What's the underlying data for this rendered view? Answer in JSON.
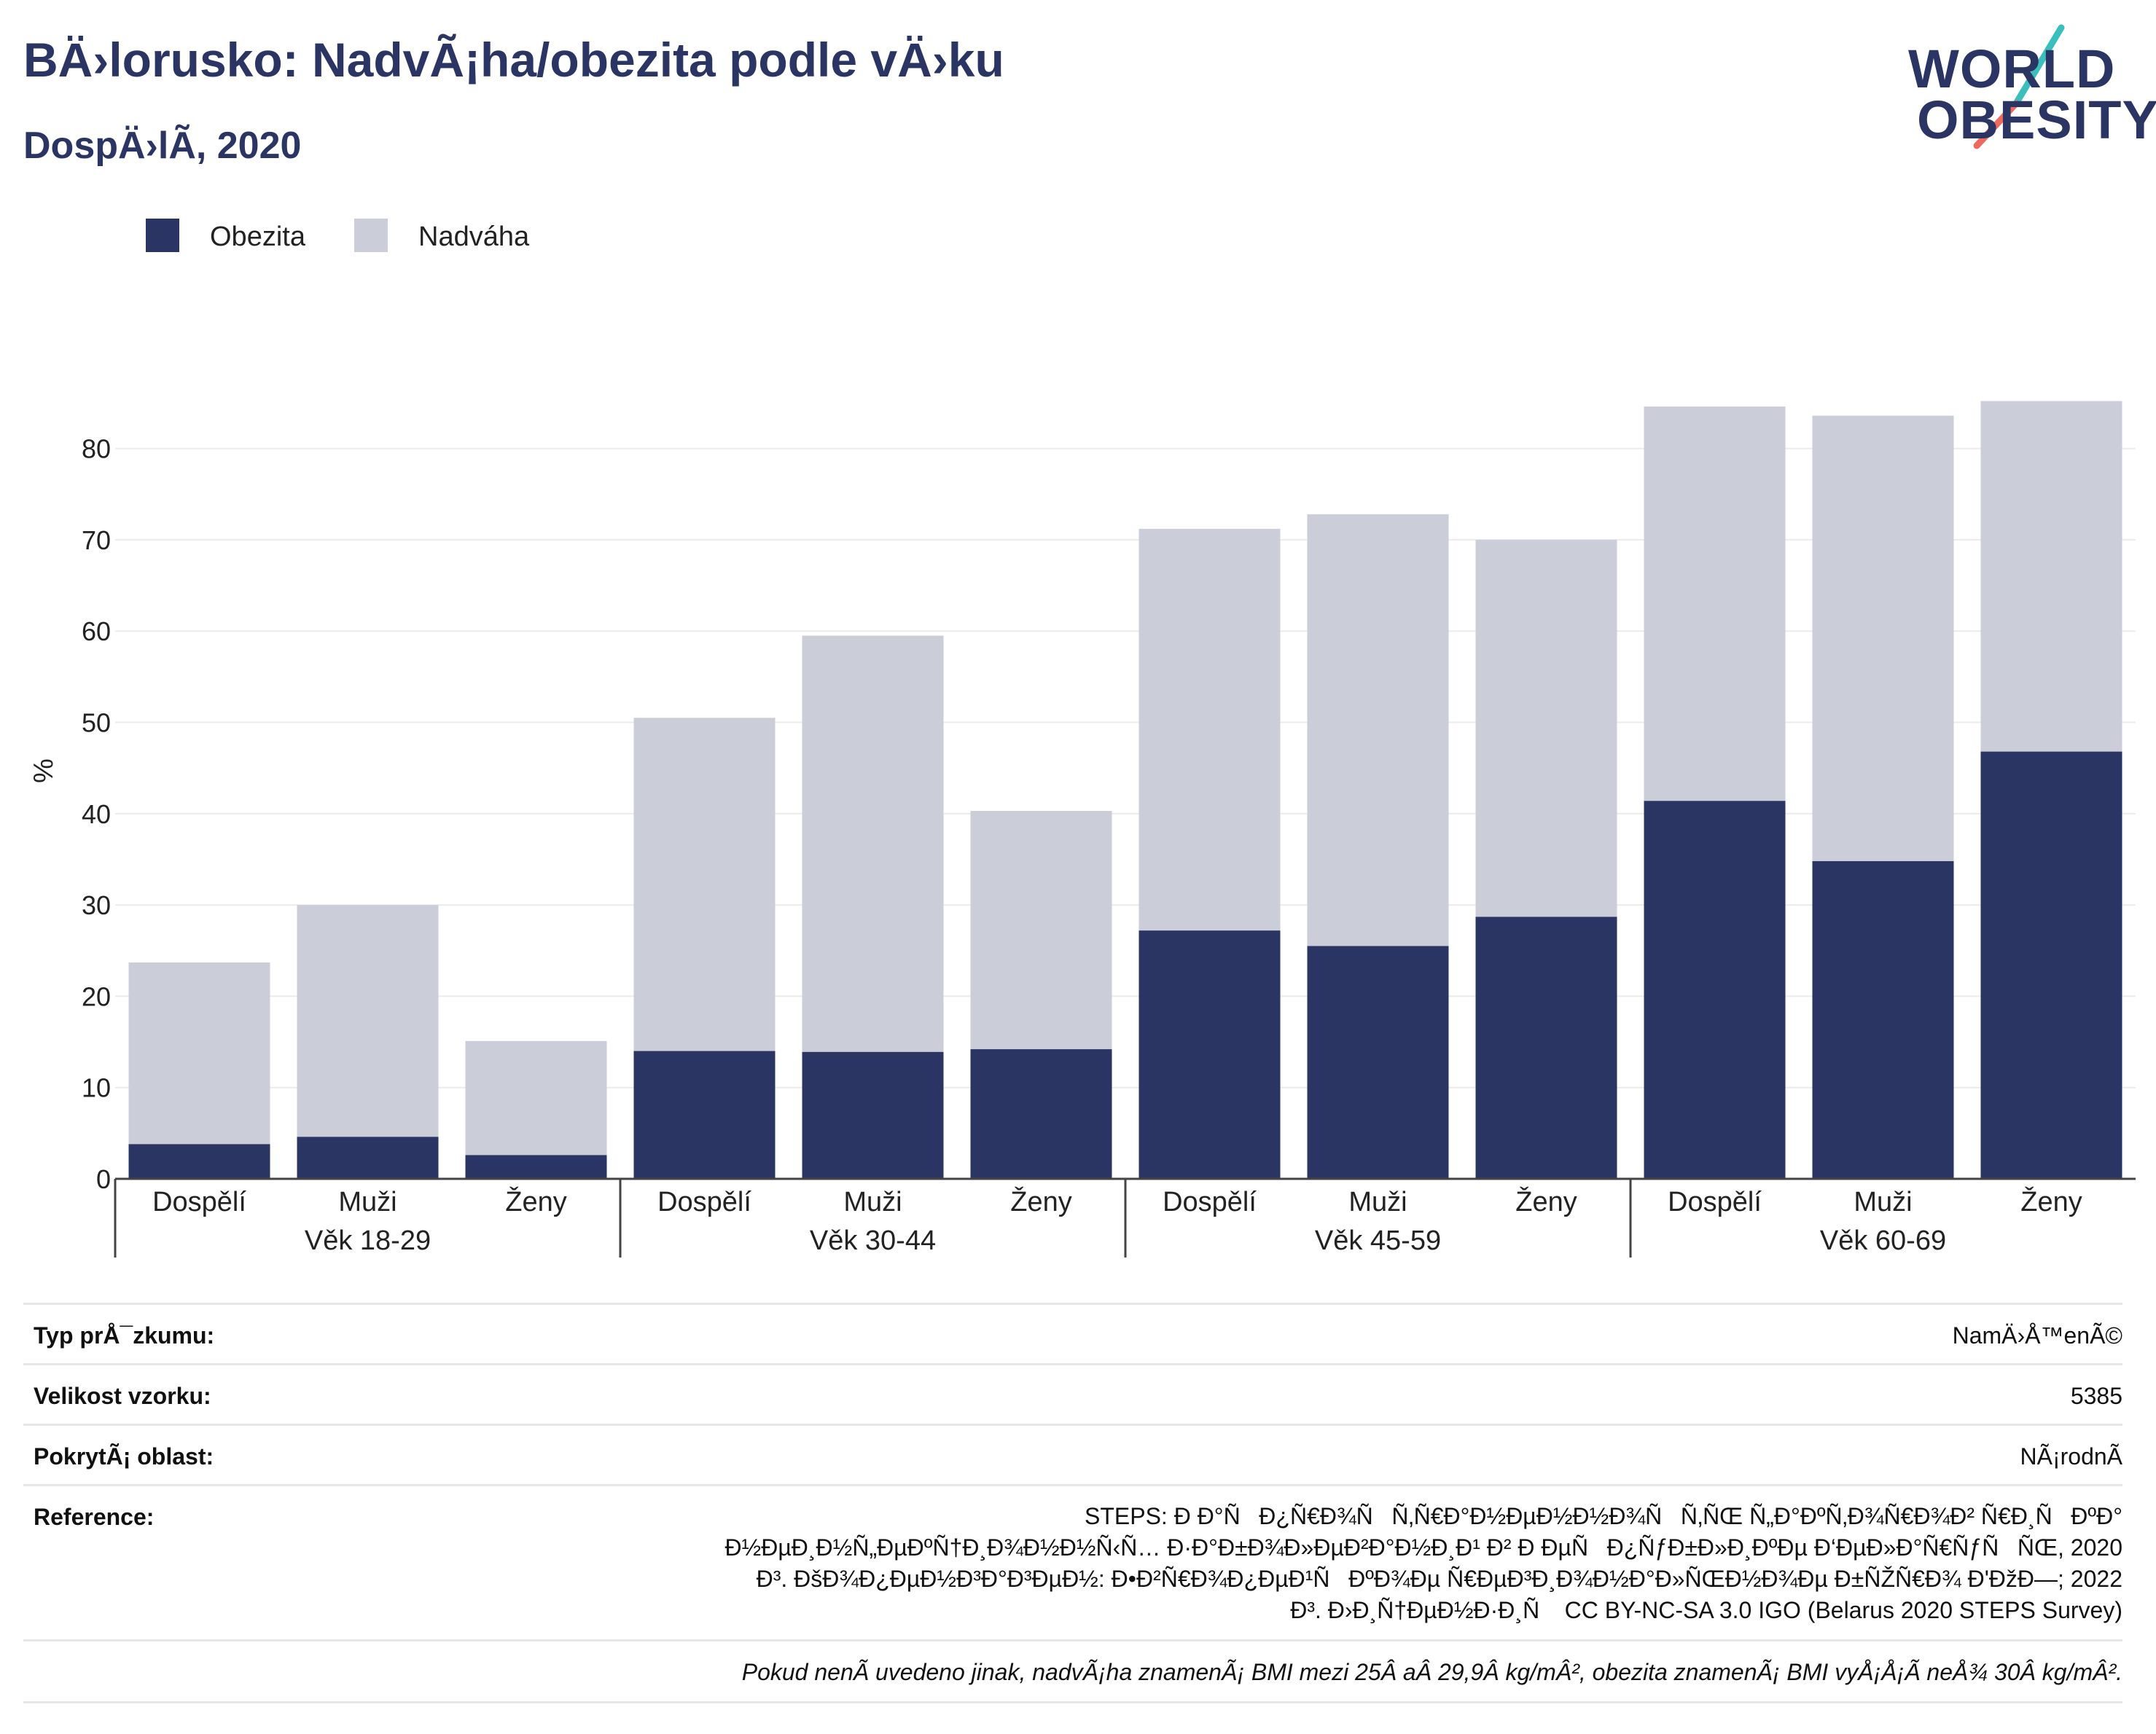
{
  "header": {
    "title": "BÄ›lorusko: NadvÃ¡ha/obezita podle vÄ›ku",
    "subtitle": "DospÄ›lÃ, 2020"
  },
  "logo": {
    "line1": "WORLD",
    "line2": "OBESITY"
  },
  "colors": {
    "obesity": "#2a3563",
    "overweight": "#cbcdd9",
    "title": "#2a3563",
    "logo_slash_teal": "#3bbfbd",
    "logo_slash_coral": "#ee6a5e"
  },
  "legend": [
    {
      "label": "Obezita",
      "color": "#2a3563"
    },
    {
      "label": "Nadváha",
      "color": "#cbcdd9"
    }
  ],
  "chart_data": {
    "type": "bar",
    "stacked": true,
    "ylabel": "%",
    "ylim": [
      0,
      85
    ],
    "yticks": [
      0,
      10,
      20,
      30,
      40,
      50,
      60,
      70,
      80
    ],
    "grid": true,
    "legend_position": "top-left",
    "groups": [
      {
        "label": "Věk 18-29",
        "categories": [
          "Dospělí",
          "Muži",
          "Ženy"
        ]
      },
      {
        "label": "Věk 30-44",
        "categories": [
          "Dospělí",
          "Muži",
          "Ženy"
        ]
      },
      {
        "label": "Věk 45-59",
        "categories": [
          "Dospělí",
          "Muži",
          "Ženy"
        ]
      },
      {
        "label": "Věk 60-69",
        "categories": [
          "Dospělí",
          "Muži",
          "Ženy"
        ]
      }
    ],
    "series": [
      {
        "name": "Obezita",
        "values": [
          3.8,
          4.6,
          2.6,
          14.0,
          13.9,
          14.2,
          27.2,
          25.5,
          28.7,
          41.4,
          34.8,
          46.8
        ]
      },
      {
        "name": "Nadváha",
        "values": [
          19.9,
          25.4,
          12.5,
          36.5,
          45.6,
          26.1,
          44.0,
          47.3,
          41.3,
          43.2,
          48.8,
          38.4
        ]
      }
    ]
  },
  "meta": {
    "survey_type_label": "Typ prÅ¯zkumu:",
    "survey_type_value": "NamÄ›Å™enÃ©",
    "sample_size_label": "Velikost vzorku:",
    "sample_size_value": "5385",
    "coverage_label": "PokrytÃ¡ oblast:",
    "coverage_value": "NÃ¡rodnÃ",
    "reference_label": "Reference:",
    "reference_lines": [
      "STEPS: Ð Ð°ÑÐ¿Ñ€Ð¾ÑÑ‚Ñ€Ð°Ð½ÐµÐ½Ð½Ð¾ÑÑ‚ÑŒ Ñ„Ð°ÐºÑ‚Ð¾Ñ€Ð¾Ð² Ñ€Ð¸ÑÐºÐ°",
      "Ð½ÐµÐ¸Ð½Ñ„ÐµÐºÑ†Ð¸Ð¾Ð½Ð½Ñ‹Ñ… Ð·Ð°Ð±Ð¾Ð»ÐµÐ²Ð°Ð½Ð¸Ð¹ Ð² Ð ÐµÑÐ¿ÑƒÐ±Ð»Ð¸ÐºÐµ Ð‘ÐµÐ»Ð°Ñ€ÑƒÑÑŒ, 2020",
      "Ð³. ÐšÐ¾Ð¿ÐµÐ½Ð³Ð°Ð³ÐµÐ½: Ð•Ð²Ñ€Ð¾Ð¿ÐµÐ¹ÑÐºÐ¾Ðµ Ñ€ÐµÐ³Ð¸Ð¾Ð½Ð°Ð»ÑŒÐ½Ð¾Ðµ Ð±ÑŽÑ€Ð¾ Ð'ÐžÐ—; 2022",
      "Ð³. Ð›Ð¸Ñ†ÐµÐ½Ð·Ð¸Ñ CC BY-NC-SA 3.0 IGO (Belarus 2020 STEPS Survey)"
    ],
    "footnote": "Pokud nenÃ uvedeno jinak, nadvÃ¡ha znamenÃ¡ BMI mezi 25Â aÂ 29,9Â kg/mÂ², obezita znamenÃ¡ BMI vyÅ¡Å¡Ã neÅ¾ 30Â kg/mÂ²."
  }
}
